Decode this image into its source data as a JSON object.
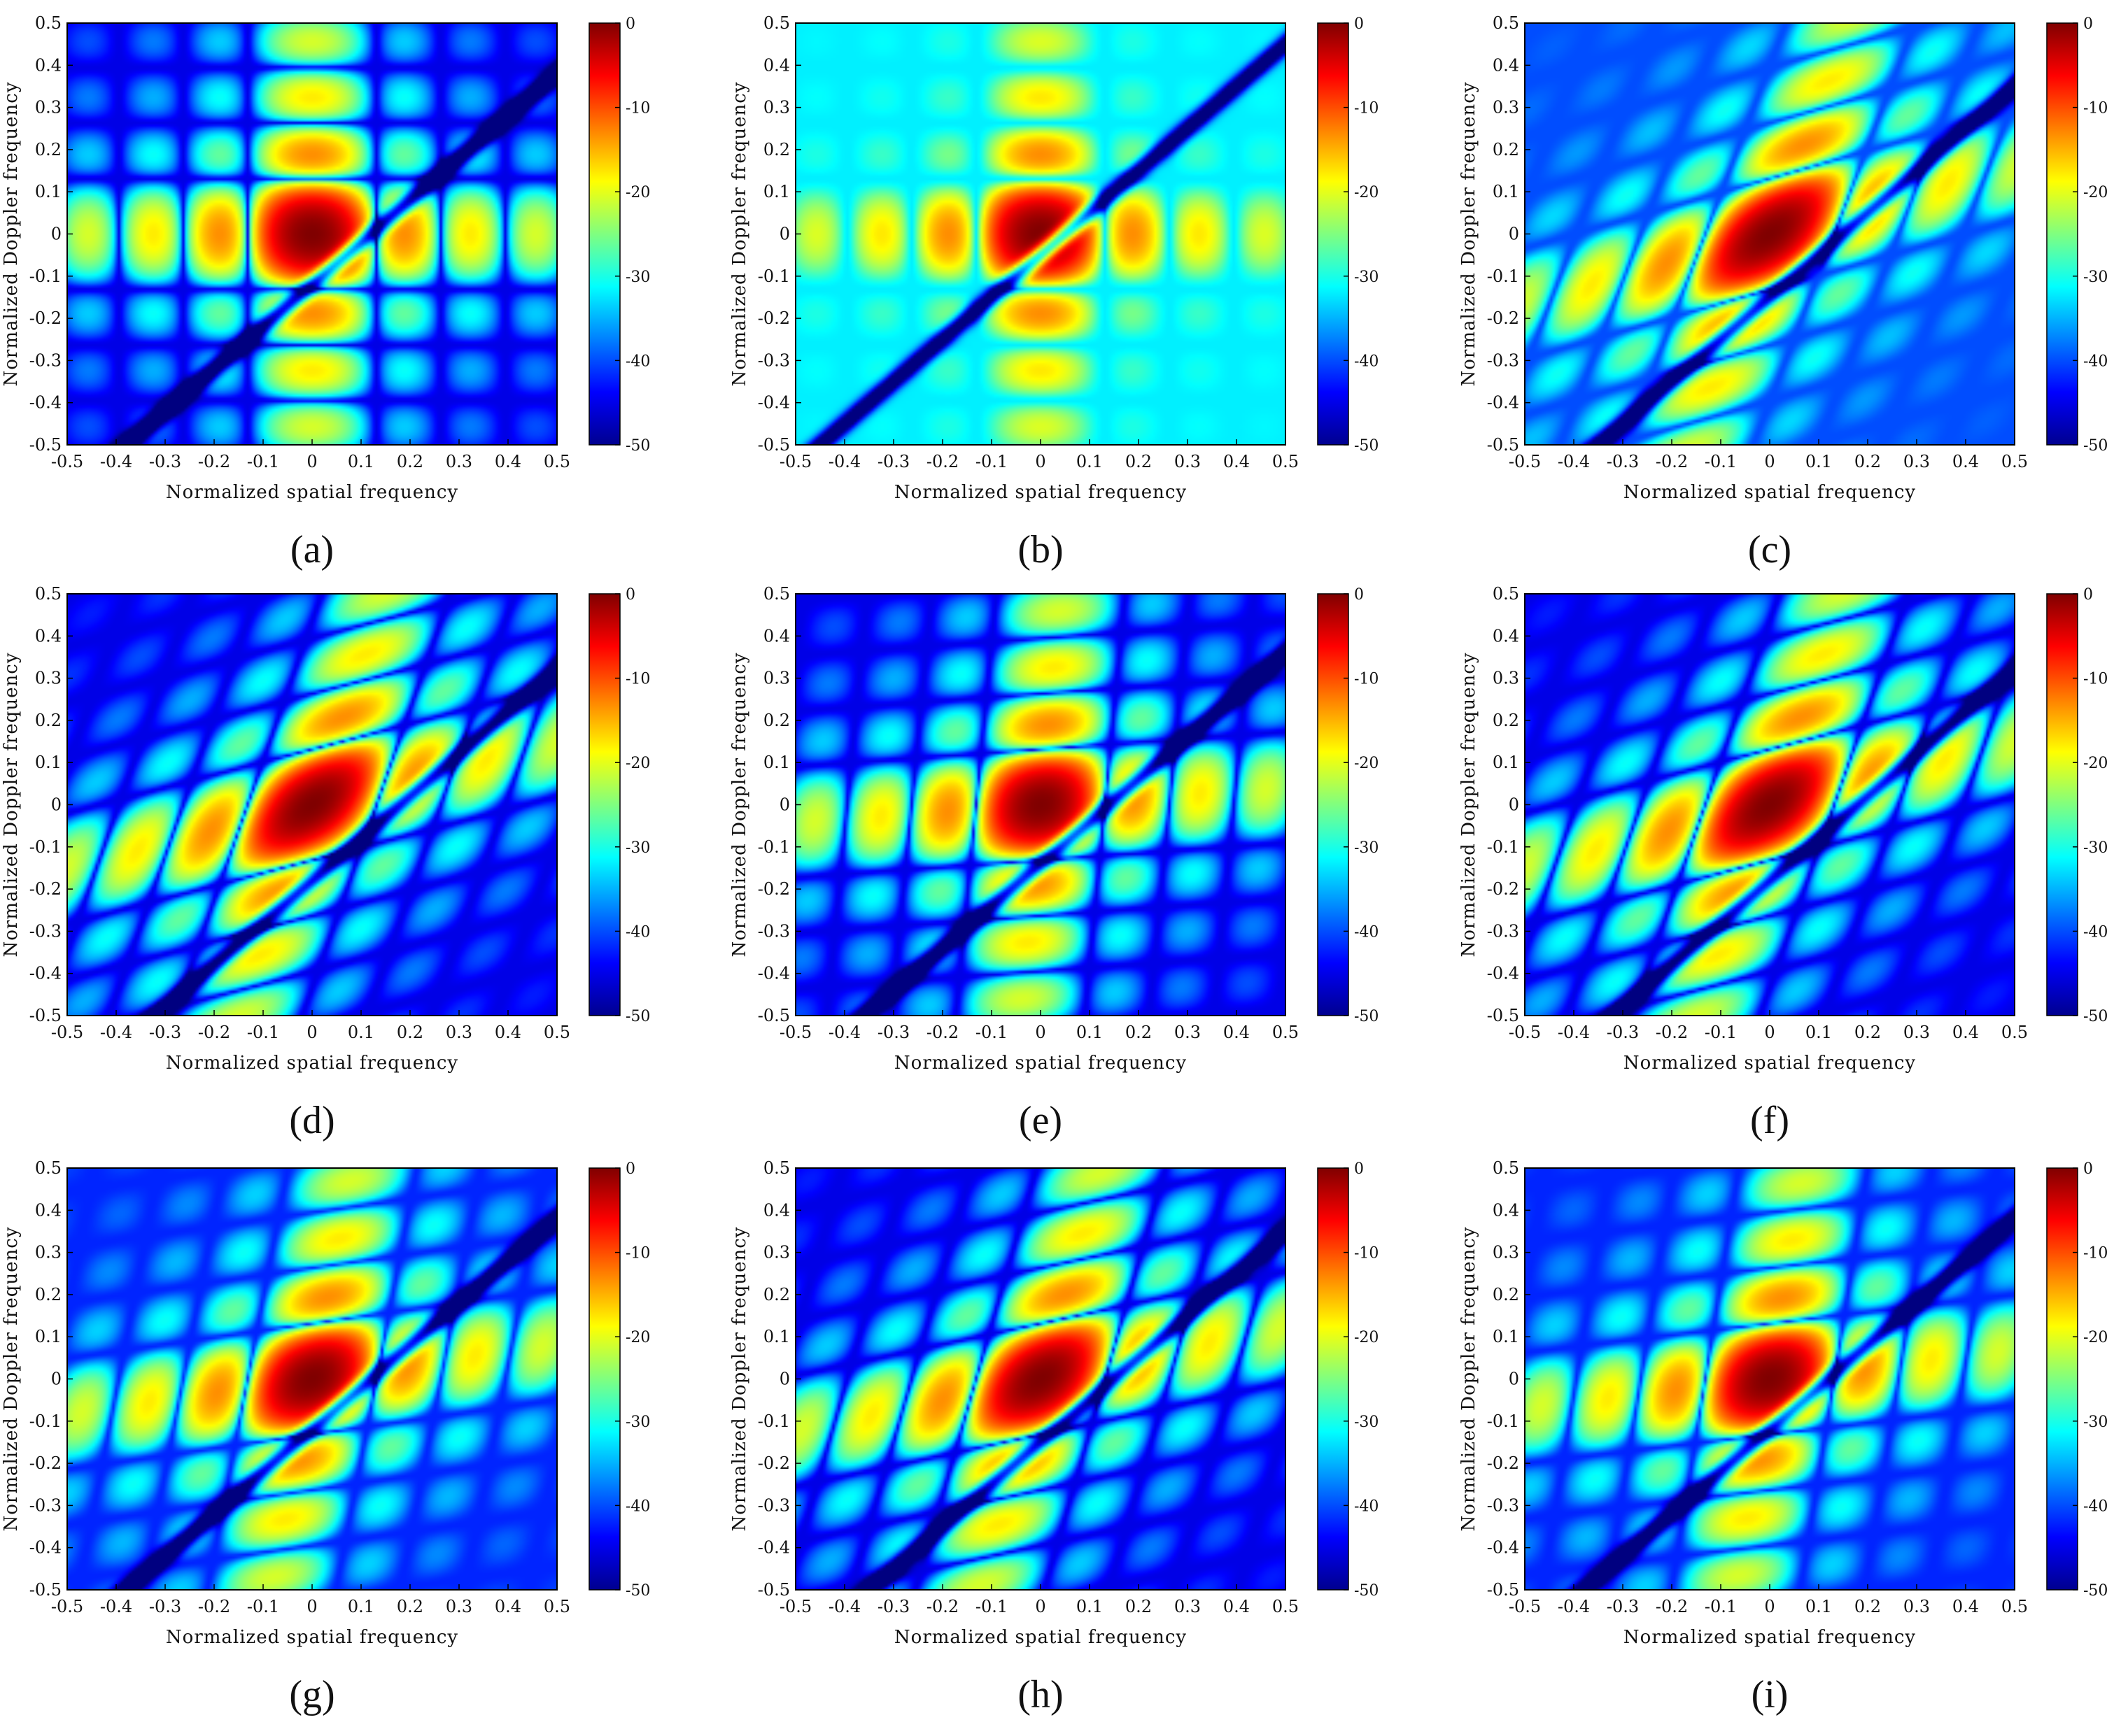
{
  "chart_data": [
    {
      "panel": "(a)",
      "type": "heatmap",
      "xlabel": "Normalized spatial frequency",
      "ylabel": "Normalized Doppler frequency",
      "xlim": [
        -0.5,
        0.5
      ],
      "ylim": [
        -0.5,
        0.5
      ],
      "x_ticks": [
        "-0.5",
        "-0.4",
        "-0.3",
        "-0.2",
        "-0.1",
        "0",
        "0.1",
        "0.2",
        "0.3",
        "0.4",
        "0.5"
      ],
      "y_ticks": [
        "0.5",
        "0.4",
        "0.3",
        "0.2",
        "0.1",
        "0",
        "-0.1",
        "-0.2",
        "-0.3",
        "-0.4",
        "-0.5"
      ],
      "colorbar": {
        "ticks": [
          "0",
          "-10",
          "-20",
          "-30",
          "-40",
          "-50"
        ],
        "range": [
          -50,
          0
        ],
        "colormap": "jet"
      },
      "peak_db": 0,
      "peak_at": [
        0,
        0
      ],
      "pattern": "cross",
      "tilt": 0.0,
      "notch": {
        "slope": 1.0,
        "intercept": -0.12
      },
      "background_db": -45
    },
    {
      "panel": "(b)",
      "type": "heatmap",
      "xlabel": "Normalized spatial frequency",
      "ylabel": "Normalized Doppler frequency",
      "xlim": [
        -0.5,
        0.5
      ],
      "ylim": [
        -0.5,
        0.5
      ],
      "x_ticks": [
        "-0.5",
        "-0.4",
        "-0.3",
        "-0.2",
        "-0.1",
        "0",
        "0.1",
        "0.2",
        "0.3",
        "0.4",
        "0.5"
      ],
      "y_ticks": [
        "0.5",
        "0.4",
        "0.3",
        "0.2",
        "0.1",
        "0",
        "-0.1",
        "-0.2",
        "-0.3",
        "-0.4",
        "-0.5"
      ],
      "colorbar": {
        "ticks": [
          "0",
          "-10",
          "-20",
          "-30",
          "-40",
          "-50"
        ],
        "range": [
          -50,
          0
        ],
        "colormap": "jet"
      },
      "peak_db": 0,
      "peak_at": [
        0,
        0
      ],
      "pattern": "cross",
      "tilt": 0.0,
      "notch": {
        "slope": 1.0,
        "intercept": -0.05
      },
      "background_db": -32
    },
    {
      "panel": "(c)",
      "type": "heatmap",
      "xlabel": "Normalized spatial frequency",
      "ylabel": "Normalized Doppler frequency",
      "xlim": [
        -0.5,
        0.5
      ],
      "ylim": [
        -0.5,
        0.5
      ],
      "x_ticks": [
        "-0.5",
        "-0.4",
        "-0.3",
        "-0.2",
        "-0.1",
        "0",
        "0.1",
        "0.2",
        "0.3",
        "0.4",
        "0.5"
      ],
      "y_ticks": [
        "0.5",
        "0.4",
        "0.3",
        "0.2",
        "0.1",
        "0",
        "-0.1",
        "-0.2",
        "-0.3",
        "-0.4",
        "-0.5"
      ],
      "colorbar": {
        "ticks": [
          "0",
          "-10",
          "-20",
          "-30",
          "-40",
          "-50"
        ],
        "range": [
          -50,
          0
        ],
        "colormap": "jet"
      },
      "peak_db": 0,
      "peak_at": [
        0,
        0
      ],
      "pattern": "tilted",
      "tilt": 0.6,
      "notch": {
        "slope": 1.0,
        "intercept": -0.15
      },
      "background_db": -40
    },
    {
      "panel": "(d)",
      "type": "heatmap",
      "xlabel": "Normalized spatial frequency",
      "ylabel": "Normalized Doppler frequency",
      "xlim": [
        -0.5,
        0.5
      ],
      "ylim": [
        -0.5,
        0.5
      ],
      "x_ticks": [
        "-0.5",
        "-0.4",
        "-0.3",
        "-0.2",
        "-0.1",
        "0",
        "0.1",
        "0.2",
        "0.3",
        "0.4",
        "0.5"
      ],
      "y_ticks": [
        "0.5",
        "0.4",
        "0.3",
        "0.2",
        "0.1",
        "0",
        "-0.1",
        "-0.2",
        "-0.3",
        "-0.4",
        "-0.5"
      ],
      "colorbar": {
        "ticks": [
          "0",
          "-10",
          "-20",
          "-30",
          "-40",
          "-50"
        ],
        "range": [
          -50,
          0
        ],
        "colormap": "jet"
      },
      "peak_db": 0,
      "peak_at": [
        0,
        0
      ],
      "pattern": "tilted",
      "tilt": 0.55,
      "notch": {
        "slope": 1.0,
        "intercept": -0.18
      },
      "background_db": -45
    },
    {
      "panel": "(e)",
      "type": "heatmap",
      "xlabel": "Normalized spatial frequency",
      "ylabel": "Normalized Doppler frequency",
      "xlim": [
        -0.5,
        0.5
      ],
      "ylim": [
        -0.5,
        0.5
      ],
      "x_ticks": [
        "-0.5",
        "-0.4",
        "-0.3",
        "-0.2",
        "-0.1",
        "0",
        "0.1",
        "0.2",
        "0.3",
        "0.4",
        "0.5"
      ],
      "y_ticks": [
        "0.5",
        "0.4",
        "0.3",
        "0.2",
        "0.1",
        "0",
        "-0.1",
        "-0.2",
        "-0.3",
        "-0.4",
        "-0.5"
      ],
      "colorbar": {
        "ticks": [
          "0",
          "-10",
          "-20",
          "-30",
          "-40",
          "-50"
        ],
        "range": [
          -50,
          0
        ],
        "colormap": "jet"
      },
      "peak_db": 0,
      "peak_at": [
        0,
        0
      ],
      "pattern": "cross",
      "tilt": 0.15,
      "notch": {
        "slope": 1.0,
        "intercept": -0.14
      },
      "background_db": -45
    },
    {
      "panel": "(f)",
      "type": "heatmap",
      "xlabel": "Normalized spatial frequency",
      "ylabel": "Normalized Doppler frequency",
      "xlim": [
        -0.5,
        0.5
      ],
      "ylim": [
        -0.5,
        0.5
      ],
      "x_ticks": [
        "-0.5",
        "-0.4",
        "-0.3",
        "-0.2",
        "-0.1",
        "0",
        "0.1",
        "0.2",
        "0.3",
        "0.4",
        "0.5"
      ],
      "y_ticks": [
        "0.5",
        "0.4",
        "0.3",
        "0.2",
        "0.1",
        "0",
        "-0.1",
        "-0.2",
        "-0.3",
        "-0.4",
        "-0.5"
      ],
      "colorbar": {
        "ticks": [
          "0",
          "-10",
          "-20",
          "-30",
          "-40",
          "-50"
        ],
        "range": [
          -50,
          0
        ],
        "colormap": "jet"
      },
      "peak_db": 0,
      "peak_at": [
        0,
        0
      ],
      "pattern": "tilted",
      "tilt": 0.55,
      "notch": {
        "slope": 1.0,
        "intercept": -0.18
      },
      "background_db": -45
    },
    {
      "panel": "(g)",
      "type": "heatmap",
      "xlabel": "Normalized spatial frequency",
      "ylabel": "Normalized Doppler frequency",
      "xlim": [
        -0.5,
        0.5
      ],
      "ylim": [
        -0.5,
        0.5
      ],
      "x_ticks": [
        "-0.5",
        "-0.4",
        "-0.3",
        "-0.2",
        "-0.1",
        "0",
        "0.1",
        "0.2",
        "0.3",
        "0.4",
        "0.5"
      ],
      "y_ticks": [
        "0.5",
        "0.4",
        "0.3",
        "0.2",
        "0.1",
        "0",
        "-0.1",
        "-0.2",
        "-0.3",
        "-0.4",
        "-0.5"
      ],
      "colorbar": {
        "ticks": [
          "0",
          "-10",
          "-20",
          "-30",
          "-40",
          "-50"
        ],
        "range": [
          -50,
          0
        ],
        "colormap": "jet"
      },
      "peak_db": 0,
      "peak_at": [
        0,
        0
      ],
      "pattern": "cross",
      "tilt": 0.3,
      "notch": {
        "slope": 1.0,
        "intercept": -0.12
      },
      "background_db": -42
    },
    {
      "panel": "(h)",
      "type": "heatmap",
      "xlabel": "Normalized spatial frequency",
      "ylabel": "Normalized Doppler frequency",
      "xlim": [
        -0.5,
        0.5
      ],
      "ylim": [
        -0.5,
        0.5
      ],
      "x_ticks": [
        "-0.5",
        "-0.4",
        "-0.3",
        "-0.2",
        "-0.1",
        "0",
        "0.1",
        "0.2",
        "0.3",
        "0.4",
        "0.5"
      ],
      "y_ticks": [
        "0.5",
        "0.4",
        "0.3",
        "0.2",
        "0.1",
        "0",
        "-0.1",
        "-0.2",
        "-0.3",
        "-0.4",
        "-0.5"
      ],
      "colorbar": {
        "ticks": [
          "0",
          "-10",
          "-20",
          "-30",
          "-40",
          "-50"
        ],
        "range": [
          -50,
          0
        ],
        "colormap": "jet"
      },
      "peak_db": 0,
      "peak_at": [
        0,
        0
      ],
      "pattern": "tilted",
      "tilt": 0.45,
      "notch": {
        "slope": 1.0,
        "intercept": -0.15
      },
      "background_db": -45
    },
    {
      "panel": "(i)",
      "type": "heatmap",
      "xlabel": "Normalized spatial frequency",
      "ylabel": "Normalized Doppler frequency",
      "xlim": [
        -0.5,
        0.5
      ],
      "ylim": [
        -0.5,
        0.5
      ],
      "x_ticks": [
        "-0.5",
        "-0.4",
        "-0.3",
        "-0.2",
        "-0.1",
        "0",
        "0.1",
        "0.2",
        "0.3",
        "0.4",
        "0.5"
      ],
      "y_ticks": [
        "0.5",
        "0.4",
        "0.3",
        "0.2",
        "0.1",
        "0",
        "-0.1",
        "-0.2",
        "-0.3",
        "-0.4",
        "-0.5"
      ],
      "colorbar": {
        "ticks": [
          "0",
          "-10",
          "-20",
          "-30",
          "-40",
          "-50"
        ],
        "range": [
          -50,
          0
        ],
        "colormap": "jet"
      },
      "peak_db": 0,
      "peak_at": [
        0,
        0
      ],
      "pattern": "cross",
      "tilt": 0.25,
      "notch": {
        "slope": 1.0,
        "intercept": -0.12
      },
      "background_db": -42
    }
  ]
}
